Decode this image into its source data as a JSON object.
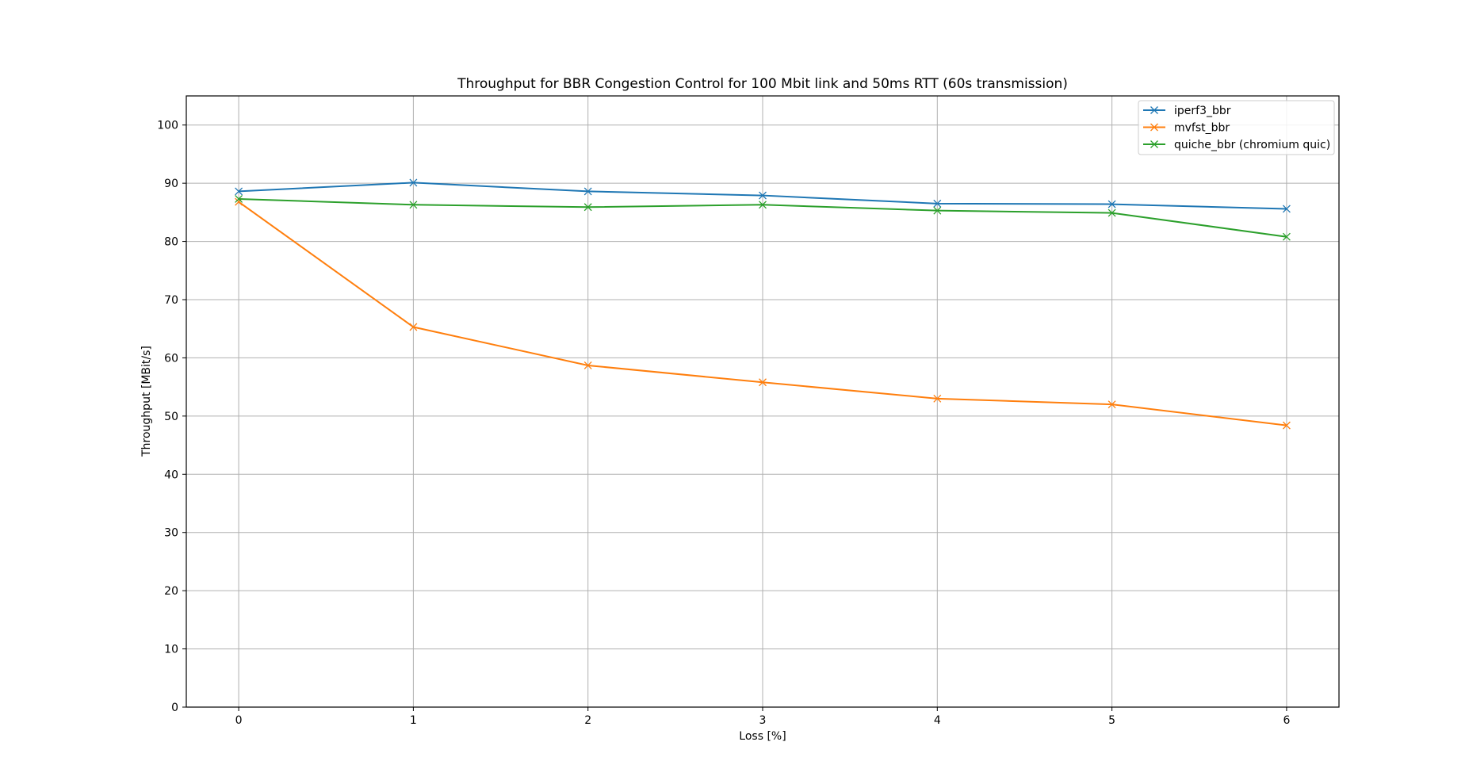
{
  "chart_data": {
    "type": "line",
    "title": "Throughput for BBR Congestion Control for 100 Mbit link and 50ms RTT (60s transmission)",
    "xlabel": "Loss [%]",
    "ylabel": "Throughput [MBit/s]",
    "x": [
      0,
      1,
      2,
      3,
      4,
      5,
      6
    ],
    "xlim": [
      -0.3,
      6.3
    ],
    "ylim": [
      0,
      105
    ],
    "xticks": [
      0,
      1,
      2,
      3,
      4,
      5,
      6
    ],
    "yticks": [
      0,
      10,
      20,
      30,
      40,
      50,
      60,
      70,
      80,
      90,
      100
    ],
    "grid": true,
    "legend_position": "top-right",
    "marker": "x",
    "series": [
      {
        "name": "iperf3_bbr",
        "color": "#1f77b4",
        "values": [
          88.6,
          90.1,
          88.6,
          87.9,
          86.5,
          86.4,
          85.6
        ]
      },
      {
        "name": "mvfst_bbr",
        "color": "#ff7f0e",
        "values": [
          86.8,
          65.3,
          58.7,
          55.8,
          53.0,
          52.0,
          48.4
        ]
      },
      {
        "name": "quiche_bbr (chromium quic)",
        "color": "#2ca02c",
        "values": [
          87.3,
          86.3,
          85.9,
          86.3,
          85.3,
          84.9,
          80.8
        ]
      }
    ]
  }
}
